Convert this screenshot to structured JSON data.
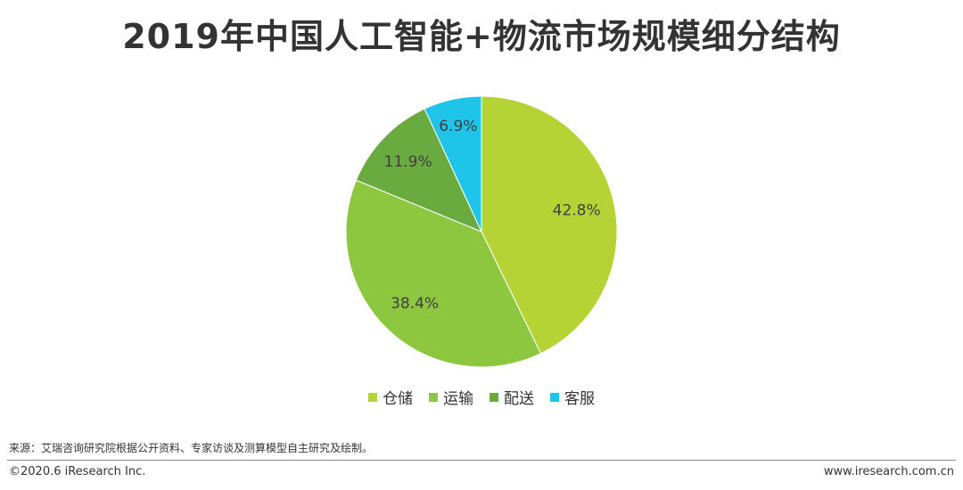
{
  "title": "2019年中国人工智能+物流市场规模细分结构",
  "chart_data": {
    "type": "pie",
    "categories": [
      "仓储",
      "运输",
      "配送",
      "客服"
    ],
    "values": [
      42.8,
      38.4,
      11.9,
      6.9
    ],
    "labels": [
      "42.8%",
      "38.4%",
      "11.9%",
      "6.9%"
    ],
    "colors": [
      "#b5d334",
      "#8dc63f",
      "#6aab3f",
      "#1ec5e8"
    ],
    "legend_position": "bottom",
    "start_angle": "12 o'clock",
    "direction": "clockwise"
  },
  "footer": {
    "source": "来源：艾瑞咨询研究院根据公开资料、专家访谈及测算模型自主研究及绘制。",
    "copyright": "©2020.6 iResearch Inc.",
    "website": "www.iresearch.com.cn"
  }
}
